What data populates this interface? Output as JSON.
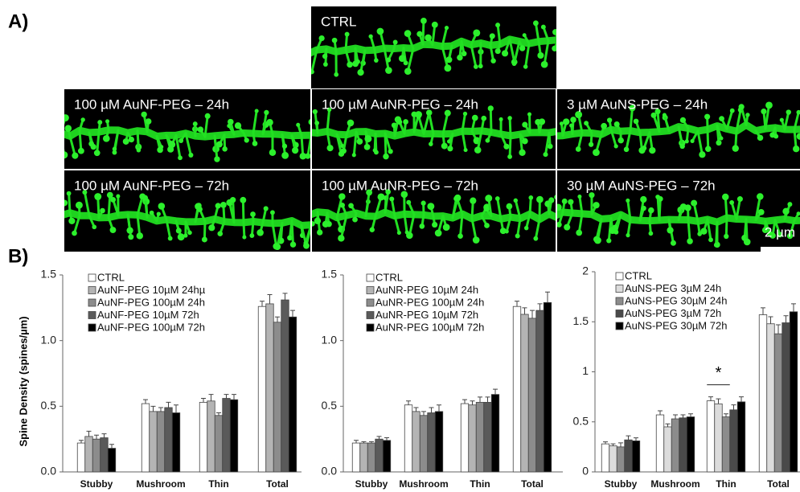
{
  "panel_a": {
    "label": "A)",
    "images": [
      {
        "label": "CTRL"
      },
      {
        "label": "100 µM AuNF-PEG – 24h"
      },
      {
        "label": "100 µM AuNR-PEG – 24h"
      },
      {
        "label": "3 µM AuNS-PEG – 24h"
      },
      {
        "label": "100 µM AuNF-PEG – 72h"
      },
      {
        "label": "100 µM AuNR-PEG – 72h"
      },
      {
        "label": "30 µM AuNS-PEG – 72h"
      }
    ],
    "scale_bar": "2 µm"
  },
  "panel_b": {
    "label": "B)"
  },
  "chart_data": [
    {
      "type": "bar",
      "ylabel": "Spine Density (spines/µm)",
      "categories": [
        "Stubby",
        "Mushroom",
        "Thin",
        "Total"
      ],
      "ylim": [
        0,
        1.5
      ],
      "yticks": [
        {
          "value": 0,
          "label": "0.0"
        },
        {
          "value": 0.5,
          "label": "0.5"
        },
        {
          "value": 1,
          "label": "1.0"
        },
        {
          "value": 1.5,
          "label": "1.5"
        }
      ],
      "series": [
        {
          "name": "CTRL",
          "color": "#ffffff",
          "values": [
            0.22,
            0.52,
            0.53,
            1.26
          ],
          "errors": [
            0.02,
            0.03,
            0.03,
            0.04
          ]
        },
        {
          "name": "AuNF-PEG 10µM 24hµ",
          "color": "#b4b4b4",
          "values": [
            0.27,
            0.46,
            0.54,
            1.28
          ],
          "errors": [
            0.04,
            0.04,
            0.05,
            0.07
          ]
        },
        {
          "name": "AuNF-PEG 100µM 24h",
          "color": "#8c8c8c",
          "values": [
            0.25,
            0.46,
            0.43,
            1.14
          ],
          "errors": [
            0.03,
            0.03,
            0.02,
            0.04
          ]
        },
        {
          "name": "AuNF-PEG 10µM 72h",
          "color": "#5a5a5a",
          "values": [
            0.26,
            0.49,
            0.56,
            1.31
          ],
          "errors": [
            0.03,
            0.04,
            0.03,
            0.05
          ]
        },
        {
          "name": "AuNF-PEG 100µM 72h",
          "color": "#000000",
          "values": [
            0.18,
            0.45,
            0.55,
            1.18
          ],
          "errors": [
            0.03,
            0.06,
            0.04,
            0.05
          ]
        }
      ]
    },
    {
      "type": "bar",
      "categories": [
        "Stubby",
        "Mushroom",
        "Thin",
        "Total"
      ],
      "ylim": [
        0,
        1.5
      ],
      "yticks": [
        {
          "value": 0,
          "label": "0.0"
        },
        {
          "value": 0.5,
          "label": "0.5"
        },
        {
          "value": 1,
          "label": "1.0"
        },
        {
          "value": 1.5,
          "label": "1.5"
        }
      ],
      "series": [
        {
          "name": "CTRL",
          "color": "#ffffff",
          "values": [
            0.22,
            0.51,
            0.52,
            1.26
          ],
          "errors": [
            0.02,
            0.03,
            0.03,
            0.04
          ]
        },
        {
          "name": "AuNR-PEG 10µM 24h",
          "color": "#b4b4b4",
          "values": [
            0.22,
            0.46,
            0.51,
            1.2
          ],
          "errors": [
            0.01,
            0.03,
            0.03,
            0.05
          ]
        },
        {
          "name": "AuNR-PEG 100µM 24h",
          "color": "#8c8c8c",
          "values": [
            0.22,
            0.43,
            0.53,
            1.17
          ],
          "errors": [
            0.01,
            0.03,
            0.04,
            0.06
          ]
        },
        {
          "name": "AuNR-PEG 10µM 72h",
          "color": "#5a5a5a",
          "values": [
            0.25,
            0.45,
            0.53,
            1.23
          ],
          "errors": [
            0.02,
            0.04,
            0.04,
            0.05
          ]
        },
        {
          "name": "AuNR-PEG 100µM 72h",
          "color": "#000000",
          "values": [
            0.24,
            0.46,
            0.59,
            1.29
          ],
          "errors": [
            0.02,
            0.05,
            0.04,
            0.08
          ]
        }
      ]
    },
    {
      "type": "bar",
      "categories": [
        "Stubby",
        "Mushroom",
        "Thin",
        "Total"
      ],
      "ylim": [
        0,
        2
      ],
      "yticks": [
        0,
        0.5,
        1,
        1.5,
        2
      ],
      "annotation": "*",
      "series": [
        {
          "name": "CTRL",
          "color": "#ffffff",
          "values": [
            0.28,
            0.57,
            0.71,
            1.57
          ],
          "errors": [
            0.02,
            0.04,
            0.04,
            0.07
          ]
        },
        {
          "name": "AuNS-PEG 3µM 24h",
          "color": "#dcdcdc",
          "values": [
            0.26,
            0.45,
            0.68,
            1.48
          ],
          "errors": [
            0.02,
            0.03,
            0.05,
            0.07
          ]
        },
        {
          "name": "AuNS-PEG 30µM 24h",
          "color": "#8c8c8c",
          "values": [
            0.25,
            0.53,
            0.55,
            1.38
          ],
          "errors": [
            0.04,
            0.04,
            0.03,
            0.09
          ]
        },
        {
          "name": "AuNS-PEG 3µM 72h",
          "color": "#4a4a4a",
          "values": [
            0.32,
            0.54,
            0.62,
            1.49
          ],
          "errors": [
            0.04,
            0.03,
            0.05,
            0.07
          ]
        },
        {
          "name": "AuNS-PEG 30µM 72h",
          "color": "#000000",
          "values": [
            0.31,
            0.55,
            0.7,
            1.6
          ],
          "errors": [
            0.03,
            0.03,
            0.05,
            0.08
          ]
        }
      ]
    }
  ]
}
